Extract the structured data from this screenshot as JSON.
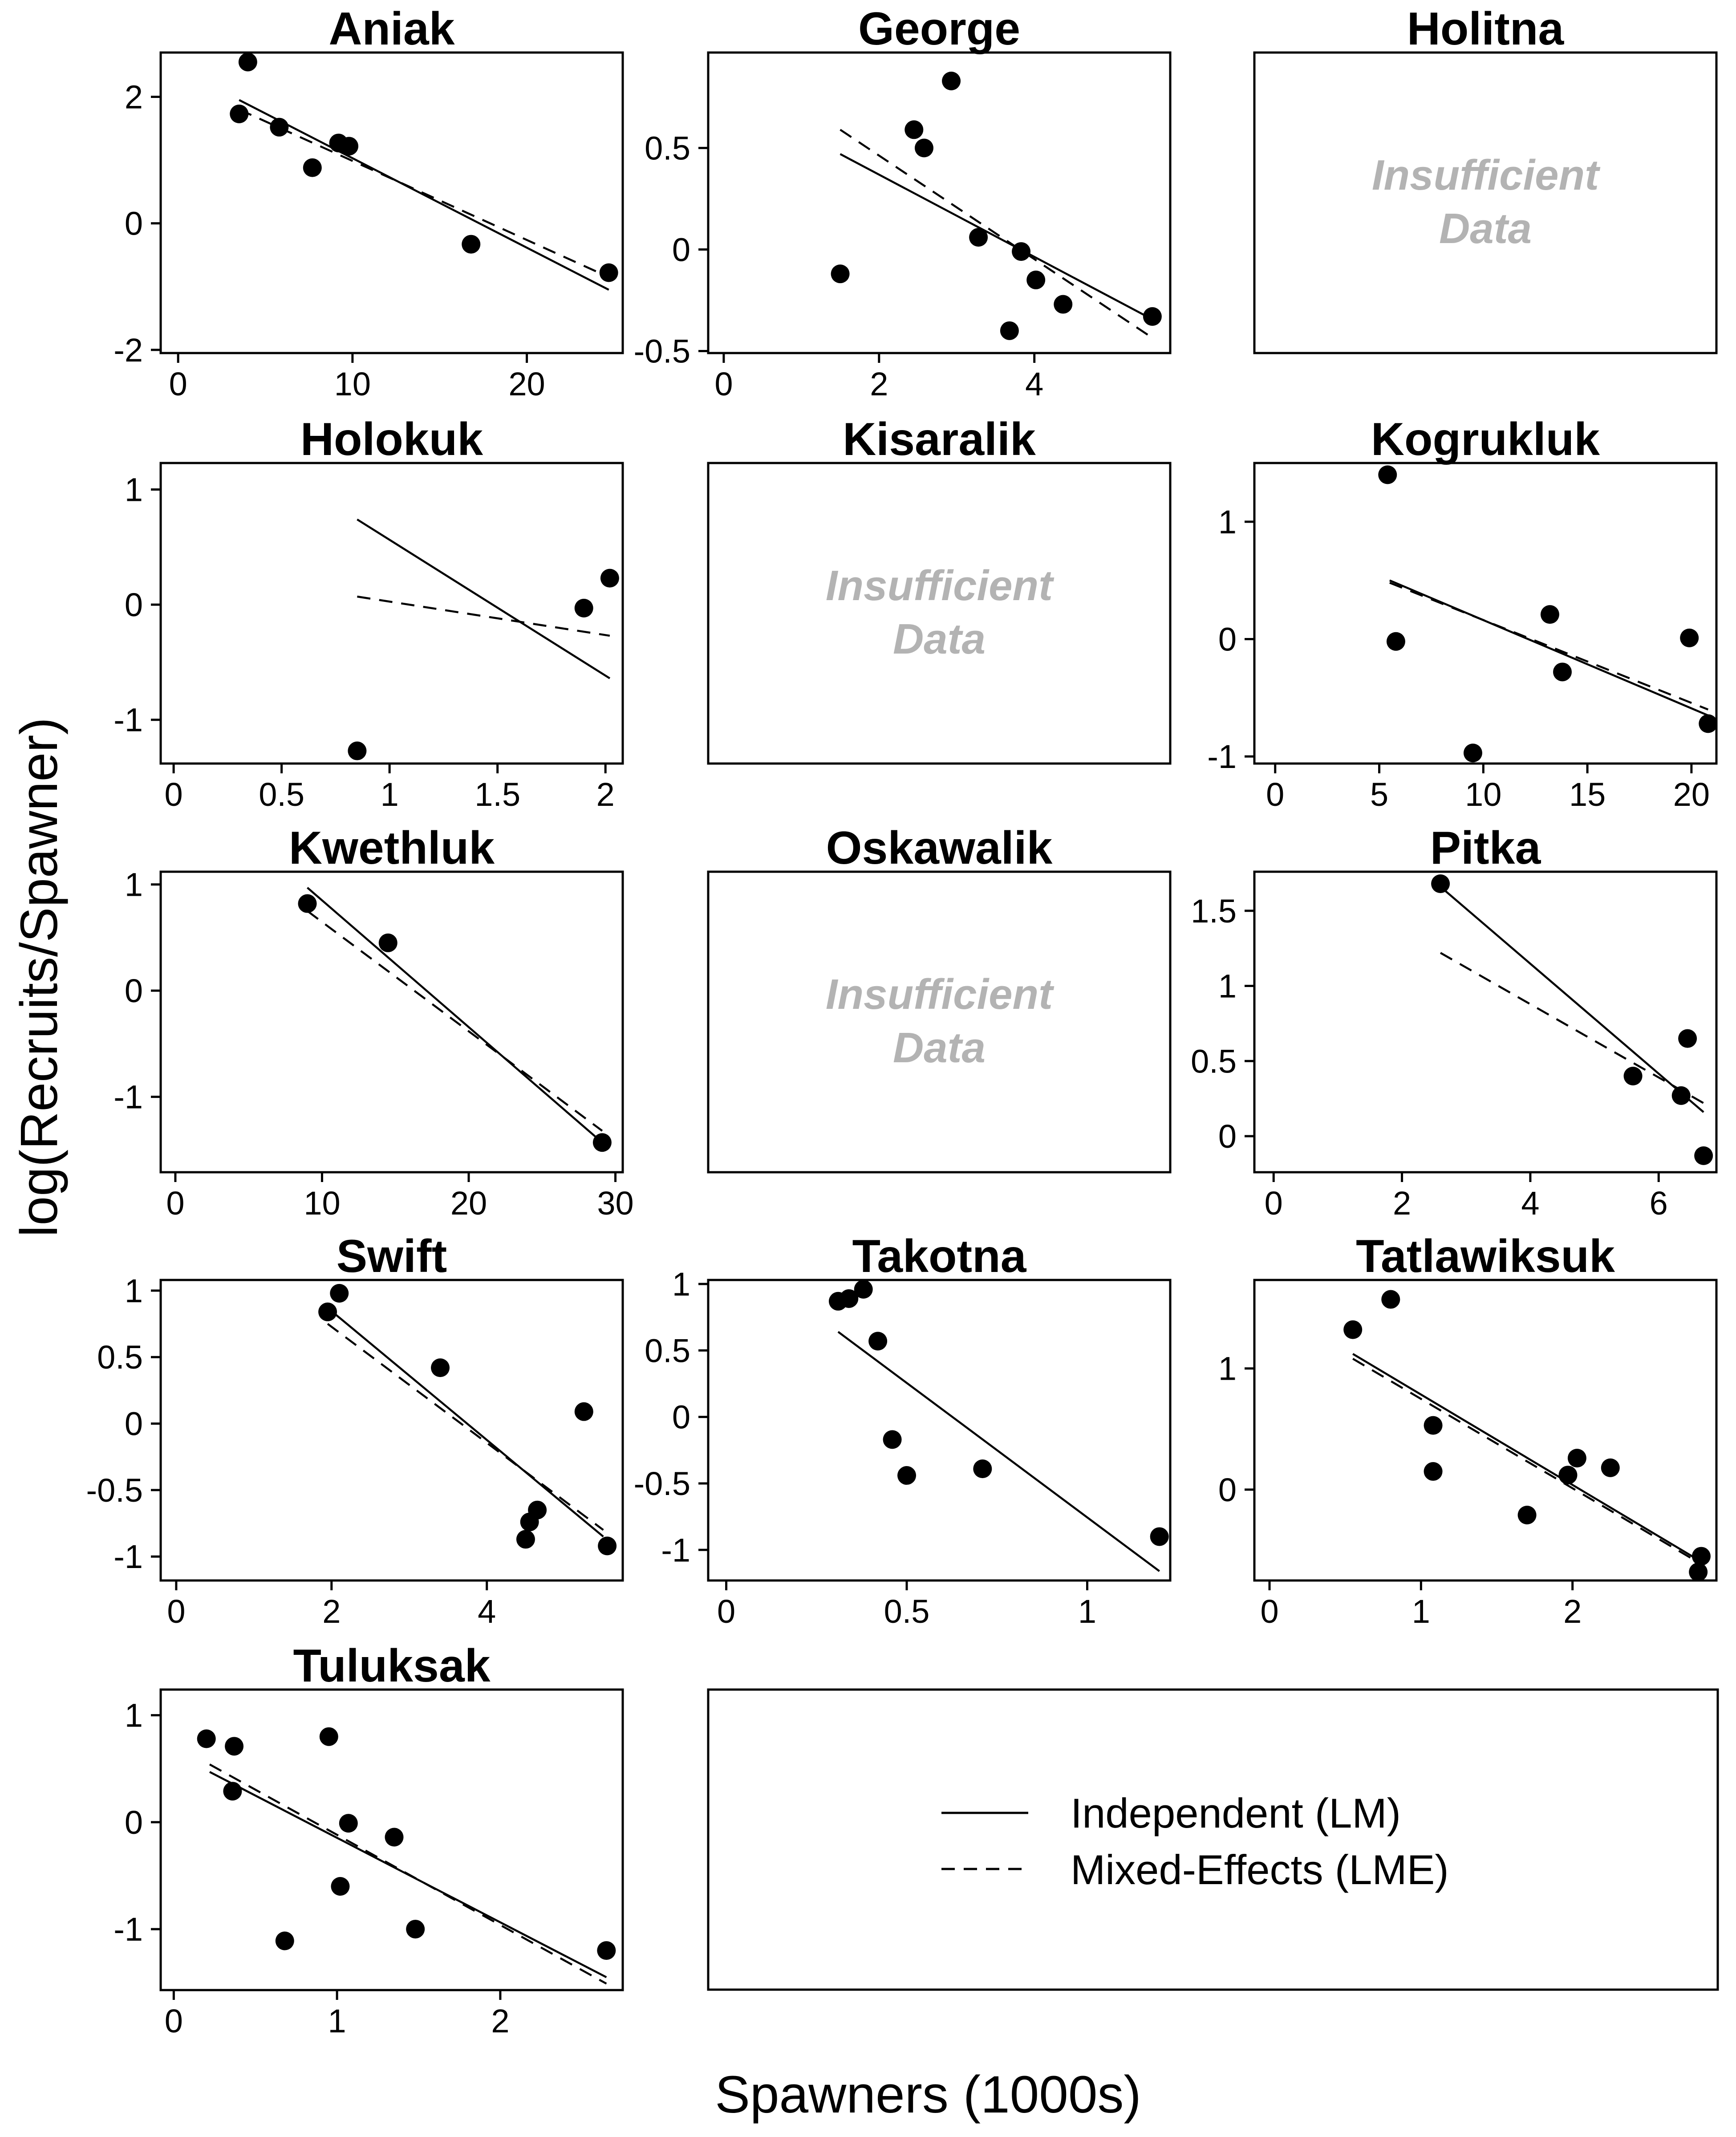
{
  "figure": {
    "xlabel": "Spawners (1000s)",
    "ylabel": "log(Recruits/Spawner)",
    "insufficient_text": [
      "Insufficient",
      "Data"
    ],
    "legend": [
      {
        "label": "Independent (LM)",
        "style": "solid"
      },
      {
        "label": "Mixed-Effects (LME)",
        "style": "dashed"
      }
    ],
    "colors": {
      "points": "#000000",
      "insufficient": "#b3b3b3",
      "frame": "#000000"
    }
  },
  "chart_data": [
    {
      "type": "scatter",
      "title": "Aniak",
      "xlim": [
        -1,
        25.5
      ],
      "ylim": [
        -2.05,
        2.7
      ],
      "xticks": [
        0,
        10,
        20
      ],
      "xtick_labels": [
        "0",
        "10",
        "20"
      ],
      "yticks": [
        -2,
        0,
        2
      ],
      "ytick_labels": [
        "-2",
        "0",
        "2"
      ],
      "points": [
        [
          3.5,
          1.73
        ],
        [
          4.0,
          2.55
        ],
        [
          5.8,
          1.52
        ],
        [
          7.7,
          0.88
        ],
        [
          9.2,
          1.27
        ],
        [
          9.8,
          1.22
        ],
        [
          16.8,
          -0.33
        ],
        [
          24.7,
          -0.78
        ]
      ],
      "lm": [
        [
          3.5,
          1.95
        ],
        [
          24.7,
          -1.05
        ]
      ],
      "lme": [
        [
          3.5,
          1.8
        ],
        [
          24.7,
          -0.85
        ]
      ]
    },
    {
      "type": "scatter",
      "title": "George",
      "xlim": [
        -0.2,
        5.75
      ],
      "ylim": [
        -0.51,
        0.97
      ],
      "xticks": [
        0,
        2,
        4
      ],
      "xtick_labels": [
        "0",
        "2",
        "4"
      ],
      "yticks": [
        -0.5,
        0,
        0.5
      ],
      "ytick_labels": [
        "-0.5",
        "0",
        "0.5"
      ],
      "points": [
        [
          1.5,
          -0.12
        ],
        [
          2.45,
          0.59
        ],
        [
          2.58,
          0.5
        ],
        [
          2.93,
          0.83
        ],
        [
          3.28,
          0.06
        ],
        [
          3.68,
          -0.4
        ],
        [
          3.83,
          -0.01
        ],
        [
          4.02,
          -0.15
        ],
        [
          4.37,
          -0.27
        ],
        [
          5.52,
          -0.33
        ]
      ],
      "lm": [
        [
          1.5,
          0.47
        ],
        [
          5.5,
          -0.34
        ]
      ],
      "lme": [
        [
          1.5,
          0.59
        ],
        [
          5.5,
          -0.43
        ]
      ]
    },
    {
      "type": "scatter",
      "title": "Holitna",
      "insufficient": true
    },
    {
      "type": "scatter",
      "title": "Holokuk",
      "xlim": [
        -0.06,
        2.08
      ],
      "ylim": [
        -1.38,
        1.23
      ],
      "xticks": [
        0,
        0.5,
        1,
        1.5,
        2
      ],
      "xtick_labels": [
        "0",
        "0.5",
        "1",
        "1.5",
        "2"
      ],
      "yticks": [
        -1,
        0,
        1
      ],
      "ytick_labels": [
        "-1",
        "0",
        "1"
      ],
      "points": [
        [
          0.85,
          -1.27
        ],
        [
          1.9,
          -0.03
        ],
        [
          2.02,
          0.23
        ]
      ],
      "lm": [
        [
          0.85,
          0.74
        ],
        [
          2.02,
          -0.64
        ]
      ],
      "lme": [
        [
          0.85,
          0.07
        ],
        [
          2.02,
          -0.27
        ]
      ]
    },
    {
      "type": "scatter",
      "title": "Kisaralik",
      "insufficient": true
    },
    {
      "type": "scatter",
      "title": "Kogrukluk",
      "xlim": [
        -1,
        21.2
      ],
      "ylim": [
        -1.06,
        1.5
      ],
      "xticks": [
        0,
        5,
        10,
        15,
        20
      ],
      "xtick_labels": [
        "0",
        "5",
        "10",
        "15",
        "20"
      ],
      "yticks": [
        -1,
        0,
        1
      ],
      "ytick_labels": [
        "-1",
        "0",
        "1"
      ],
      "points": [
        [
          5.4,
          1.4
        ],
        [
          5.8,
          -0.02
        ],
        [
          9.5,
          -0.97
        ],
        [
          13.2,
          0.21
        ],
        [
          13.8,
          -0.28
        ],
        [
          19.9,
          0.01
        ],
        [
          20.8,
          -0.72
        ]
      ],
      "lm": [
        [
          5.5,
          0.5
        ],
        [
          20.8,
          -0.65
        ]
      ],
      "lme": [
        [
          5.5,
          0.48
        ],
        [
          20.8,
          -0.6
        ]
      ]
    },
    {
      "type": "scatter",
      "title": "Kwethluk",
      "xlim": [
        -1,
        30.5
      ],
      "ylim": [
        -1.71,
        1.12
      ],
      "xticks": [
        0,
        10,
        20,
        30
      ],
      "xtick_labels": [
        "0",
        "10",
        "20",
        "30"
      ],
      "yticks": [
        -1,
        0,
        1
      ],
      "ytick_labels": [
        "-1",
        "0",
        "1"
      ],
      "points": [
        [
          9.0,
          0.82
        ],
        [
          14.5,
          0.45
        ],
        [
          29.1,
          -1.43
        ]
      ],
      "lm": [
        [
          9.0,
          0.97
        ],
        [
          29.1,
          -1.43
        ]
      ],
      "lme": [
        [
          9.0,
          0.75
        ],
        [
          29.1,
          -1.32
        ]
      ]
    },
    {
      "type": "scatter",
      "title": "Oskawalik",
      "insufficient": true
    },
    {
      "type": "scatter",
      "title": "Pitka",
      "xlim": [
        -0.3,
        6.9
      ],
      "ylim": [
        -0.24,
        1.76
      ],
      "xticks": [
        0,
        2,
        4,
        6
      ],
      "xtick_labels": [
        "0",
        "2",
        "4",
        "6"
      ],
      "yticks": [
        0,
        0.5,
        1,
        1.5
      ],
      "ytick_labels": [
        "0",
        "0.5",
        "1",
        "1.5"
      ],
      "points": [
        [
          2.6,
          1.68
        ],
        [
          5.6,
          0.4
        ],
        [
          6.35,
          0.27
        ],
        [
          6.45,
          0.65
        ],
        [
          6.7,
          -0.13
        ]
      ],
      "lm": [
        [
          2.6,
          1.66
        ],
        [
          6.7,
          0.16
        ]
      ],
      "lme": [
        [
          2.6,
          1.22
        ],
        [
          6.7,
          0.22
        ]
      ]
    },
    {
      "type": "scatter",
      "title": "Swift",
      "xlim": [
        -0.2,
        5.75
      ],
      "ylim": [
        -1.18,
        1.08
      ],
      "xticks": [
        0,
        2,
        4
      ],
      "xtick_labels": [
        "0",
        "2",
        "4"
      ],
      "yticks": [
        -1,
        -0.5,
        0,
        0.5,
        1
      ],
      "ytick_labels": [
        "-1",
        "-0.5",
        "0",
        "0.5",
        "1"
      ],
      "points": [
        [
          1.95,
          0.84
        ],
        [
          2.1,
          0.98
        ],
        [
          3.4,
          0.42
        ],
        [
          4.5,
          -0.87
        ],
        [
          4.55,
          -0.74
        ],
        [
          4.65,
          -0.65
        ],
        [
          5.25,
          0.09
        ],
        [
          5.55,
          -0.92
        ]
      ],
      "lm": [
        [
          1.95,
          0.87
        ],
        [
          5.5,
          -0.85
        ]
      ],
      "lme": [
        [
          1.95,
          0.75
        ],
        [
          5.5,
          -0.8
        ]
      ]
    },
    {
      "type": "scatter",
      "title": "Takotna",
      "xlim": [
        -0.05,
        1.23
      ],
      "ylim": [
        -1.23,
        1.03
      ],
      "xticks": [
        0,
        0.5,
        1
      ],
      "xtick_labels": [
        "0",
        "0.5",
        "1"
      ],
      "yticks": [
        -1,
        -0.5,
        0,
        0.5,
        1
      ],
      "ytick_labels": [
        "-1",
        "-0.5",
        "0",
        "0.5",
        "1"
      ],
      "points": [
        [
          0.31,
          0.87
        ],
        [
          0.34,
          0.89
        ],
        [
          0.38,
          0.96
        ],
        [
          0.42,
          0.57
        ],
        [
          0.46,
          -0.17
        ],
        [
          0.5,
          -0.44
        ],
        [
          0.71,
          -0.39
        ],
        [
          1.2,
          -0.9
        ]
      ],
      "lm": [
        [
          0.31,
          0.64
        ],
        [
          1.2,
          -1.16
        ]
      ]
    },
    {
      "type": "scatter",
      "title": "Tatlawiksuk",
      "xlim": [
        -0.1,
        2.95
      ],
      "ylim": [
        -0.75,
        1.73
      ],
      "xticks": [
        0,
        1,
        2
      ],
      "xtick_labels": [
        "0",
        "1",
        "2"
      ],
      "yticks": [
        0,
        1
      ],
      "ytick_labels": [
        "0",
        "1"
      ],
      "points": [
        [
          0.55,
          1.32
        ],
        [
          0.8,
          1.57
        ],
        [
          1.08,
          0.53
        ],
        [
          1.08,
          0.15
        ],
        [
          1.7,
          -0.21
        ],
        [
          1.97,
          0.12
        ],
        [
          2.03,
          0.26
        ],
        [
          2.25,
          0.18
        ],
        [
          2.83,
          -0.68
        ],
        [
          2.85,
          -0.55
        ]
      ],
      "lm": [
        [
          0.55,
          1.12
        ],
        [
          2.83,
          -0.58
        ]
      ],
      "lme": [
        [
          0.55,
          1.08
        ],
        [
          2.83,
          -0.6
        ]
      ]
    },
    {
      "type": "scatter",
      "title": "Tuluksak",
      "xlim": [
        -0.08,
        2.75
      ],
      "ylim": [
        -1.57,
        1.24
      ],
      "xticks": [
        0,
        1,
        2
      ],
      "xtick_labels": [
        "0",
        "1",
        "2"
      ],
      "yticks": [
        -1,
        0,
        1
      ],
      "ytick_labels": [
        "-1",
        "0",
        "1"
      ],
      "points": [
        [
          0.2,
          0.78
        ],
        [
          0.37,
          0.71
        ],
        [
          0.36,
          0.29
        ],
        [
          0.68,
          -1.11
        ],
        [
          0.95,
          0.8
        ],
        [
          1.02,
          -0.6
        ],
        [
          1.07,
          -0.01
        ],
        [
          1.35,
          -0.14
        ],
        [
          1.48,
          -1.0
        ],
        [
          2.65,
          -1.2
        ]
      ],
      "lm": [
        [
          0.22,
          0.47
        ],
        [
          2.65,
          -1.45
        ]
      ],
      "lme": [
        [
          0.22,
          0.54
        ],
        [
          2.65,
          -1.51
        ]
      ]
    }
  ]
}
